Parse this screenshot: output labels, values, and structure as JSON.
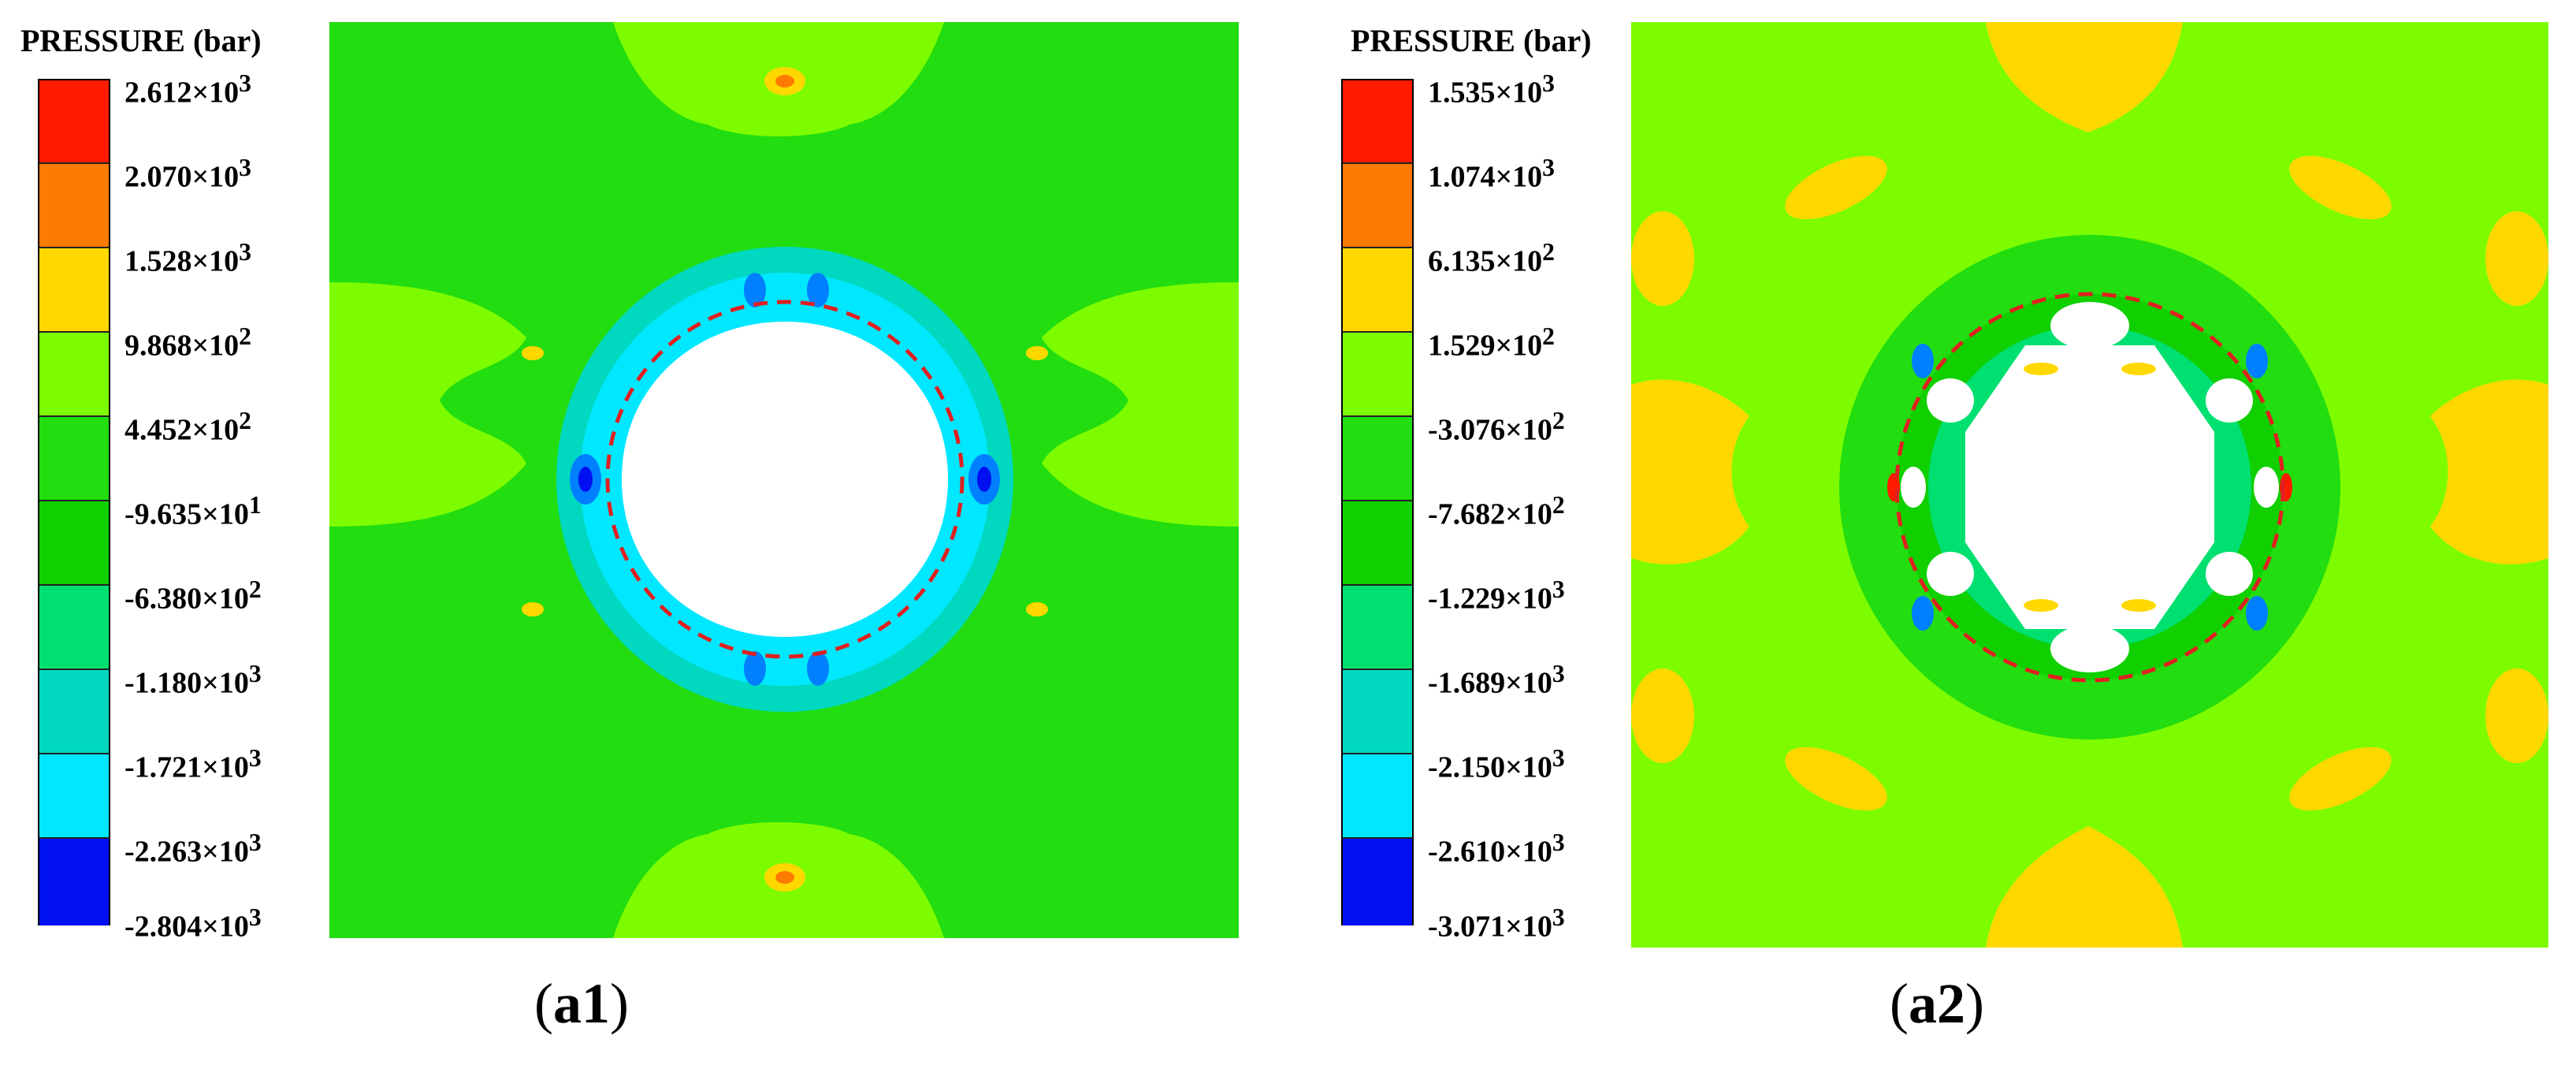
{
  "panels": [
    {
      "id": "a1",
      "legend": {
        "title": "PRESSURE (bar)",
        "ticks": [
          {
            "m": "2.612",
            "e": "3"
          },
          {
            "m": "2.070",
            "e": "3"
          },
          {
            "m": "1.528",
            "e": "3"
          },
          {
            "m": "9.868",
            "e": "2"
          },
          {
            "m": "4.452",
            "e": "2"
          },
          {
            "m": "-9.635",
            "e": "1"
          },
          {
            "m": "-6.380",
            "e": "2"
          },
          {
            "m": "-1.180",
            "e": "3"
          },
          {
            "m": "-1.721",
            "e": "3"
          },
          {
            "m": "-2.263",
            "e": "3"
          },
          {
            "m": "-2.804",
            "e": "3"
          }
        ]
      },
      "caption": {
        "open": "(",
        "label": "a1",
        "close": ")"
      }
    },
    {
      "id": "a2",
      "legend": {
        "title": "PRESSURE (bar)",
        "ticks": [
          {
            "m": "1.535",
            "e": "3"
          },
          {
            "m": "1.074",
            "e": "3"
          },
          {
            "m": "6.135",
            "e": "2"
          },
          {
            "m": "1.529",
            "e": "2"
          },
          {
            "m": "-3.076",
            "e": "2"
          },
          {
            "m": "-7.682",
            "e": "2"
          },
          {
            "m": "-1.229",
            "e": "3"
          },
          {
            "m": "-1.689",
            "e": "3"
          },
          {
            "m": "-2.150",
            "e": "3"
          },
          {
            "m": "-2.610",
            "e": "3"
          },
          {
            "m": "-3.071",
            "e": "3"
          }
        ]
      },
      "caption": {
        "open": "(",
        "label": "a2",
        "close": ")"
      }
    }
  ],
  "colormap": [
    "#ff1a00",
    "#ff7a00",
    "#ffd800",
    "#7dfc00",
    "#22dd10",
    "#10d000",
    "#00e070",
    "#00d8c0",
    "#00e8ff",
    "#0080ff",
    "#0010f0"
  ],
  "times_sign": "×",
  "tick_base": "10"
}
